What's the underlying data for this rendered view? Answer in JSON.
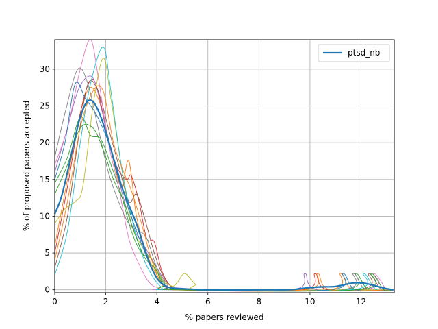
{
  "chart_data": {
    "type": "line",
    "title": "",
    "xlabel": "% papers reviewed",
    "ylabel": "% of proposed papers accepted",
    "xlim": [
      0,
      13.3
    ],
    "ylim": [
      -0.4,
      34
    ],
    "xticks": [
      "0",
      "2",
      "4",
      "6",
      "8",
      "10",
      "12"
    ],
    "yticks": [
      "0",
      "5",
      "10",
      "15",
      "20",
      "25",
      "30"
    ],
    "grid": true,
    "legend": {
      "placement": "top-right",
      "entries": [
        "ptsd_nb"
      ]
    },
    "main_series": {
      "name": "ptsd_nb",
      "color": "#1f77b4",
      "points": [
        [
          0,
          10.3
        ],
        [
          0.25,
          12.5
        ],
        [
          0.5,
          16
        ],
        [
          0.75,
          20
        ],
        [
          1.0,
          23.5
        ],
        [
          1.25,
          25.5
        ],
        [
          1.5,
          25.6
        ],
        [
          1.75,
          24
        ],
        [
          2.0,
          21.5
        ],
        [
          2.25,
          18.5
        ],
        [
          2.5,
          15.3
        ],
        [
          2.75,
          12.8
        ],
        [
          3.0,
          10.7
        ],
        [
          3.25,
          8.5
        ],
        [
          3.5,
          5.8
        ],
        [
          3.75,
          3.3
        ],
        [
          4.0,
          1.6
        ],
        [
          4.25,
          0.7
        ],
        [
          4.5,
          0.3
        ],
        [
          5.0,
          0.15
        ],
        [
          5.5,
          0.05
        ],
        [
          6,
          0
        ],
        [
          9,
          0
        ],
        [
          9.5,
          0.1
        ],
        [
          10,
          0.3
        ],
        [
          10.5,
          0.4
        ],
        [
          11,
          0.45
        ],
        [
          11.5,
          0.8
        ],
        [
          11.8,
          0.95
        ],
        [
          12.2,
          0.85
        ],
        [
          12.6,
          0.5
        ],
        [
          13,
          0.15
        ],
        [
          13.3,
          0
        ]
      ]
    },
    "runs": [
      {
        "color": "#ff7f0e",
        "points": [
          [
            0,
            6
          ],
          [
            0.5,
            15
          ],
          [
            1.0,
            24
          ],
          [
            1.4,
            27.5
          ],
          [
            1.8,
            25
          ],
          [
            2.2,
            19
          ],
          [
            2.6,
            14
          ],
          [
            2.9,
            17.5
          ],
          [
            3.2,
            10
          ],
          [
            3.6,
            5
          ],
          [
            4.0,
            2
          ],
          [
            4.4,
            0.3
          ],
          [
            5,
            0
          ],
          [
            10.7,
            0
          ],
          [
            11.2,
            2.2
          ],
          [
            11.7,
            0
          ],
          [
            13.3,
            0
          ]
        ]
      },
      {
        "color": "#2ca02c",
        "points": [
          [
            0,
            14.5
          ],
          [
            0.5,
            18
          ],
          [
            1.0,
            23.5
          ],
          [
            1.4,
            21
          ],
          [
            1.8,
            20.5
          ],
          [
            2.2,
            17
          ],
          [
            2.6,
            13
          ],
          [
            3.0,
            8
          ],
          [
            3.4,
            5
          ],
          [
            3.8,
            4.2
          ],
          [
            4.2,
            1
          ],
          [
            4.6,
            0.2
          ],
          [
            5,
            0
          ],
          [
            11.3,
            0
          ],
          [
            11.8,
            2.2
          ],
          [
            12.3,
            0
          ],
          [
            13.3,
            0
          ]
        ]
      },
      {
        "color": "#d62728",
        "points": [
          [
            0,
            5
          ],
          [
            0.5,
            14
          ],
          [
            1.0,
            24
          ],
          [
            1.4,
            28.5
          ],
          [
            1.7,
            27
          ],
          [
            2.0,
            22
          ],
          [
            2.4,
            17
          ],
          [
            2.8,
            15
          ],
          [
            3.0,
            15.5
          ],
          [
            3.3,
            12
          ],
          [
            3.6,
            7
          ],
          [
            3.9,
            6.5
          ],
          [
            4.2,
            2.5
          ],
          [
            4.6,
            0.3
          ],
          [
            5,
            0
          ],
          [
            9.7,
            0
          ],
          [
            10.2,
            2.2
          ],
          [
            10.7,
            0
          ],
          [
            13.3,
            0
          ]
        ]
      },
      {
        "color": "#9467bd",
        "points": [
          [
            0,
            16
          ],
          [
            0.5,
            22
          ],
          [
            0.9,
            27
          ],
          [
            1.3,
            29
          ],
          [
            1.6,
            28
          ],
          [
            2.0,
            22
          ],
          [
            2.5,
            15
          ],
          [
            3.0,
            9
          ],
          [
            3.5,
            6
          ],
          [
            4.0,
            3
          ],
          [
            4.4,
            0.8
          ],
          [
            4.8,
            0
          ],
          [
            9.3,
            0
          ],
          [
            9.8,
            2.2
          ],
          [
            10.3,
            0
          ],
          [
            13.3,
            0
          ]
        ]
      },
      {
        "color": "#8c564b",
        "points": [
          [
            0,
            3
          ],
          [
            0.5,
            10
          ],
          [
            0.9,
            20
          ],
          [
            1.3,
            28
          ],
          [
            1.7,
            27
          ],
          [
            2.1,
            22
          ],
          [
            2.5,
            17
          ],
          [
            2.9,
            12
          ],
          [
            3.2,
            13
          ],
          [
            3.5,
            10
          ],
          [
            3.9,
            5
          ],
          [
            4.3,
            1.5
          ],
          [
            4.7,
            0.2
          ],
          [
            5.2,
            0
          ],
          [
            11.8,
            0
          ],
          [
            12.3,
            2.2
          ],
          [
            12.8,
            0
          ],
          [
            13.3,
            0
          ]
        ]
      },
      {
        "color": "#e377c2",
        "points": [
          [
            0,
            17
          ],
          [
            0.5,
            22
          ],
          [
            1.0,
            30
          ],
          [
            1.4,
            34
          ],
          [
            1.7,
            29
          ],
          [
            2.1,
            20
          ],
          [
            2.5,
            14
          ],
          [
            2.9,
            7
          ],
          [
            3.3,
            3.5
          ],
          [
            3.7,
            1
          ],
          [
            4.1,
            0.2
          ],
          [
            4.5,
            0
          ],
          [
            12.0,
            0
          ],
          [
            12.5,
            2.2
          ],
          [
            13.0,
            0
          ],
          [
            13.3,
            0
          ]
        ]
      },
      {
        "color": "#7f7f7f",
        "points": [
          [
            0,
            18
          ],
          [
            0.4,
            24
          ],
          [
            0.9,
            30
          ],
          [
            1.3,
            28
          ],
          [
            1.7,
            22
          ],
          [
            2.1,
            16
          ],
          [
            2.5,
            12
          ],
          [
            2.9,
            9
          ],
          [
            3.3,
            8
          ],
          [
            3.6,
            7
          ],
          [
            4.0,
            3
          ],
          [
            4.4,
            0.5
          ],
          [
            4.8,
            0
          ],
          [
            11.2,
            0
          ],
          [
            11.7,
            2.2
          ],
          [
            12.2,
            0
          ],
          [
            13.3,
            0
          ]
        ]
      },
      {
        "color": "#bcbd22",
        "points": [
          [
            0,
            9
          ],
          [
            0.4,
            11
          ],
          [
            0.8,
            12
          ],
          [
            1.1,
            14
          ],
          [
            1.5,
            25
          ],
          [
            1.9,
            31.5
          ],
          [
            2.2,
            26
          ],
          [
            2.6,
            17
          ],
          [
            3.0,
            9
          ],
          [
            3.4,
            6
          ],
          [
            3.8,
            4
          ],
          [
            4.2,
            1.5
          ],
          [
            4.6,
            0.5
          ],
          [
            4.8,
            1
          ],
          [
            5.1,
            2.2
          ],
          [
            5.5,
            0.8
          ],
          [
            6.0,
            0
          ],
          [
            13.3,
            0
          ]
        ]
      },
      {
        "color": "#17becf",
        "points": [
          [
            0,
            2
          ],
          [
            0.5,
            8
          ],
          [
            1.0,
            20
          ],
          [
            1.4,
            28
          ],
          [
            1.9,
            33
          ],
          [
            2.2,
            27
          ],
          [
            2.6,
            17
          ],
          [
            3.0,
            10
          ],
          [
            3.4,
            5
          ],
          [
            3.8,
            2
          ],
          [
            4.2,
            0.3
          ],
          [
            4.6,
            0
          ],
          [
            11.6,
            0
          ],
          [
            12.1,
            2.2
          ],
          [
            12.6,
            0
          ],
          [
            13.3,
            0
          ]
        ]
      },
      {
        "color": "#1f77b4",
        "points": [
          [
            0,
            15
          ],
          [
            0.4,
            20
          ],
          [
            0.8,
            28
          ],
          [
            1.2,
            26
          ],
          [
            1.6,
            24
          ],
          [
            2.0,
            21
          ],
          [
            2.4,
            17
          ],
          [
            2.8,
            12
          ],
          [
            3.2,
            8
          ],
          [
            3.6,
            4.5
          ],
          [
            4.0,
            1.5
          ],
          [
            4.4,
            0.3
          ],
          [
            4.8,
            0
          ],
          [
            10.8,
            0
          ],
          [
            11.3,
            2.2
          ],
          [
            11.8,
            0
          ],
          [
            13.3,
            0
          ]
        ]
      },
      {
        "color": "#ff7f0e",
        "points": [
          [
            0,
            4
          ],
          [
            0.5,
            12
          ],
          [
            1.0,
            22
          ],
          [
            1.5,
            27
          ],
          [
            1.9,
            27
          ],
          [
            2.3,
            20
          ],
          [
            2.7,
            16
          ],
          [
            3.0,
            13.5
          ],
          [
            3.4,
            9
          ],
          [
            3.8,
            4
          ],
          [
            4.2,
            0.8
          ],
          [
            4.6,
            0
          ],
          [
            9.8,
            0
          ],
          [
            10.3,
            2.2
          ],
          [
            10.8,
            0
          ],
          [
            13.3,
            0
          ]
        ]
      },
      {
        "color": "#2ca02c",
        "points": [
          [
            0,
            13
          ],
          [
            0.5,
            17
          ],
          [
            1.0,
            22
          ],
          [
            1.5,
            22
          ],
          [
            1.9,
            19
          ],
          [
            2.3,
            15
          ],
          [
            2.7,
            12
          ],
          [
            3.1,
            8
          ],
          [
            3.5,
            4.5
          ],
          [
            3.9,
            3
          ],
          [
            4.3,
            0.8
          ],
          [
            4.7,
            0
          ],
          [
            11.9,
            0
          ],
          [
            12.4,
            2.2
          ],
          [
            12.9,
            0
          ],
          [
            13.3,
            0
          ]
        ]
      }
    ]
  }
}
